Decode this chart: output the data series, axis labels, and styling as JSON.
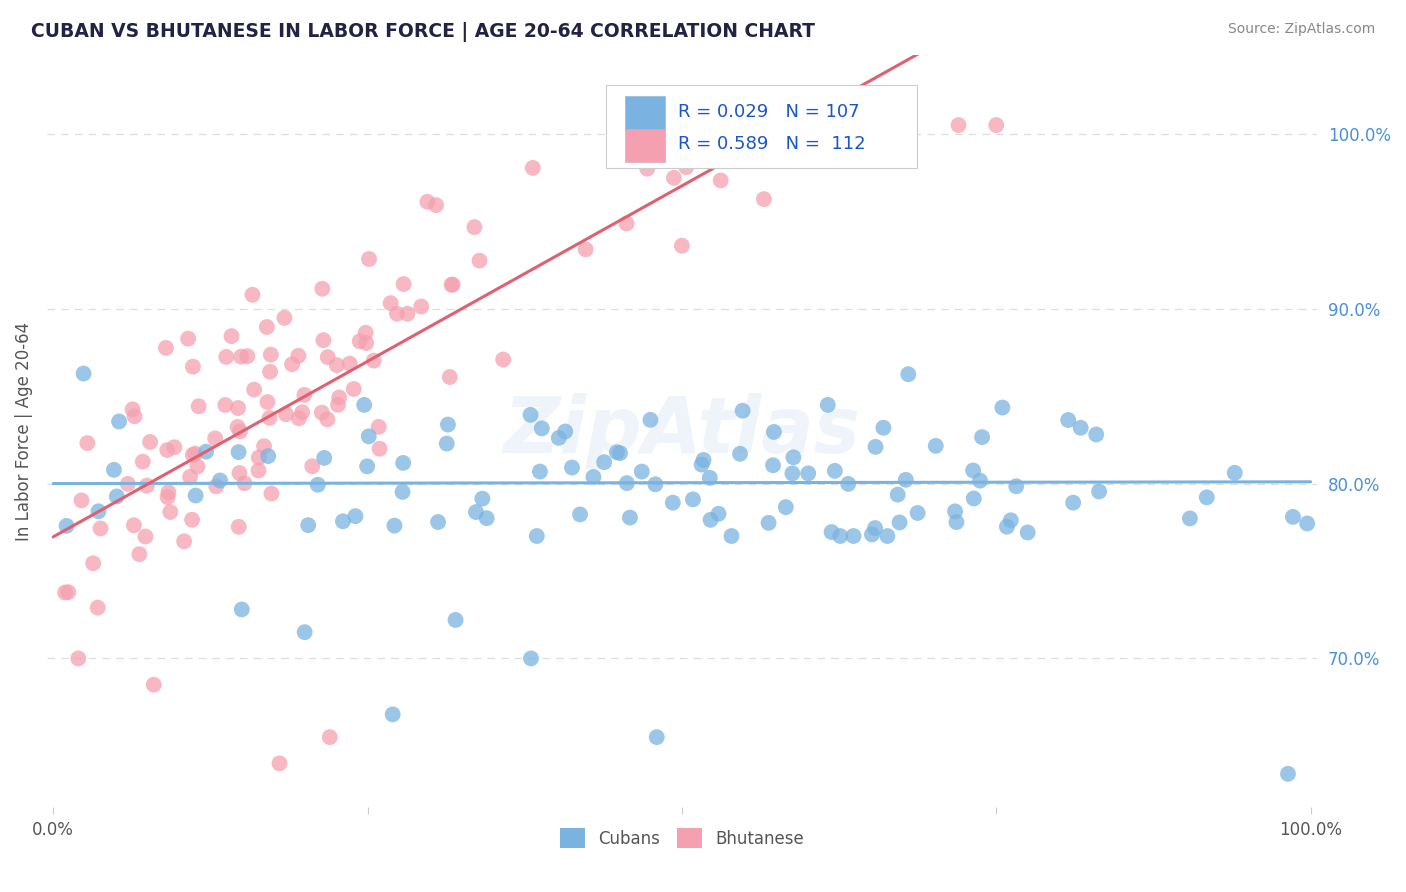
{
  "title": "CUBAN VS BHUTANESE IN LABOR FORCE | AGE 20-64 CORRELATION CHART",
  "source": "Source: ZipAtlas.com",
  "ylabel": "In Labor Force | Age 20-64",
  "xlim": [
    -0.005,
    1.005
  ],
  "ylim": [
    0.615,
    1.045
  ],
  "ytick_right": [
    0.7,
    0.8,
    0.9,
    1.0
  ],
  "ytick_right_labels": [
    "70.0%",
    "80.0%",
    "90.0%",
    "100.0%"
  ],
  "cuban_color": "#7ab3e0",
  "bhutanese_color": "#f5a0b0",
  "bhutanese_line_color": "#e06070",
  "cuban_R": 0.029,
  "cuban_N": 107,
  "bhutanese_R": 0.589,
  "bhutanese_N": 112,
  "legend_label_cuban": "Cubans",
  "legend_label_bhutanese": "Bhutanese",
  "watermark": "ZipAtlas",
  "grid_color": "#dddddd",
  "title_color": "#222244",
  "source_color": "#888888",
  "axis_label_color": "#555555",
  "tick_label_color": "#4a90d9"
}
